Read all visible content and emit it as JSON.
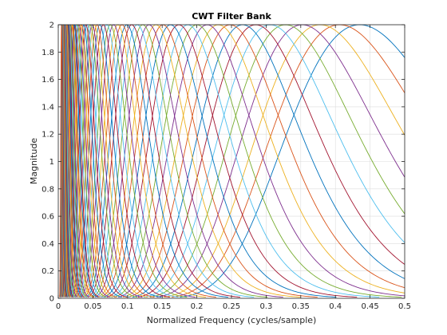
{
  "chart_data": {
    "type": "line",
    "title": "CWT Filter Bank",
    "xlabel": "Normalized Frequency  (cycles/sample)",
    "ylabel": "Magnitude",
    "xlim": [
      0,
      0.5
    ],
    "ylim": [
      0,
      2
    ],
    "x_ticks": [
      "0",
      "0.05",
      "0.1",
      "0.15",
      "0.2",
      "0.25",
      "0.3",
      "0.35",
      "0.4",
      "0.45",
      "0.5"
    ],
    "y_ticks": [
      "0",
      "0.2",
      "0.4",
      "0.6",
      "0.8",
      "1",
      "1.2",
      "1.4",
      "1.6",
      "1.8",
      "2"
    ],
    "x_tick_values": [
      0,
      0.05,
      0.1,
      0.15,
      0.2,
      0.25,
      0.3,
      0.35,
      0.4,
      0.45,
      0.5
    ],
    "y_tick_values": [
      0,
      0.2,
      0.4,
      0.6,
      0.8,
      1,
      1.2,
      1.4,
      1.6,
      1.8,
      2
    ],
    "grid": true,
    "colors": [
      "#0072bd",
      "#d95319",
      "#edb120",
      "#7e2f8e",
      "#77ac30",
      "#4dbeee",
      "#a2142f"
    ],
    "filter_peak_value": 2,
    "filter_center_frequencies": [
      0.435,
      0.406,
      0.378,
      0.352,
      0.328,
      0.306,
      0.285,
      0.266,
      0.248,
      0.231,
      0.215,
      0.2,
      0.187,
      0.174,
      0.162,
      0.151,
      0.141,
      0.131,
      0.122,
      0.114,
      0.106,
      0.099,
      0.092,
      0.086,
      0.08,
      0.075,
      0.07,
      0.065,
      0.06,
      0.056,
      0.052,
      0.049,
      0.046,
      0.042,
      0.04,
      0.037,
      0.034,
      0.032,
      0.03,
      0.028,
      0.026,
      0.024,
      0.023,
      0.021,
      0.02,
      0.018,
      0.017,
      0.016,
      0.015,
      0.014,
      0.013,
      0.012,
      0.011,
      0.01,
      0.0095,
      0.0088,
      0.0082,
      0.0077,
      0.0071,
      0.0066,
      0.0062,
      0.0058,
      0.0054,
      0.005,
      0.0047
    ]
  }
}
